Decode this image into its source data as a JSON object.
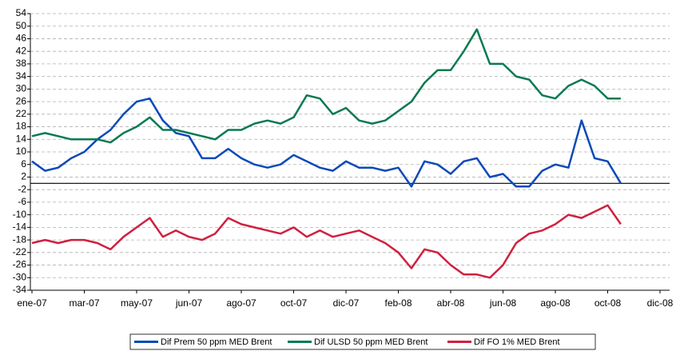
{
  "chart_data": {
    "type": "line",
    "categories": [
      "ene-07",
      null,
      null,
      null,
      "mar-07",
      null,
      null,
      null,
      "may-07",
      null,
      null,
      null,
      "jun-07",
      null,
      null,
      null,
      "ago-07",
      null,
      null,
      null,
      "oct-07",
      null,
      null,
      null,
      "dic-07",
      null,
      null,
      null,
      "feb-08",
      null,
      null,
      null,
      "abr-08",
      null,
      null,
      null,
      "jun-08",
      null,
      null,
      null,
      "ago-08",
      null,
      null,
      null,
      "oct-08",
      null,
      null,
      null,
      "dic-08"
    ],
    "series": [
      {
        "name": "Dif Prem 50 ppm MED Brent",
        "color": "#0a49b8",
        "values": [
          7,
          4,
          5,
          8,
          10,
          14,
          17,
          22,
          26,
          27,
          20,
          16,
          15,
          8,
          8,
          11,
          8,
          6,
          5,
          6,
          9,
          7,
          5,
          4,
          7,
          5,
          5,
          4,
          5,
          -1,
          7,
          6,
          3,
          7,
          8,
          2,
          3,
          -1,
          -1,
          4,
          6,
          5,
          20,
          8,
          7,
          0,
          null,
          null,
          null
        ]
      },
      {
        "name": "Dif ULSD 50 ppm MED Brent",
        "color": "#0a7a50",
        "values": [
          15,
          16,
          15,
          14,
          14,
          14,
          13,
          16,
          18,
          21,
          17,
          17,
          16,
          15,
          14,
          17,
          17,
          19,
          20,
          19,
          21,
          28,
          27,
          22,
          24,
          20,
          19,
          20,
          23,
          26,
          32,
          36,
          36,
          42,
          49,
          38,
          38,
          34,
          33,
          28,
          27,
          31,
          33,
          31,
          27,
          27,
          null,
          null,
          null
        ]
      },
      {
        "name": "Dif FO 1% MED Brent",
        "color": "#d0203f",
        "values": [
          -19,
          -18,
          -19,
          -18,
          -18,
          -19,
          -21,
          -17,
          -14,
          -11,
          -17,
          -15,
          -17,
          -18,
          -16,
          -11,
          -13,
          -14,
          -15,
          -16,
          -14,
          -17,
          -15,
          -17,
          -16,
          -15,
          -17,
          -19,
          -22,
          -27,
          -21,
          -22,
          -26,
          -29,
          -29,
          -30,
          -26,
          -19,
          -16,
          -15,
          -13,
          -10,
          -11,
          -9,
          -7,
          -13,
          null,
          null,
          null
        ]
      }
    ],
    "ylim": [
      -34,
      54
    ],
    "yticks": [
      -34,
      -30,
      -26,
      -22,
      -18,
      -14,
      -10,
      -6,
      -2,
      2,
      6,
      10,
      14,
      18,
      22,
      26,
      30,
      34,
      38,
      42,
      46,
      50,
      54
    ],
    "grid": true,
    "legend": "bottom"
  }
}
